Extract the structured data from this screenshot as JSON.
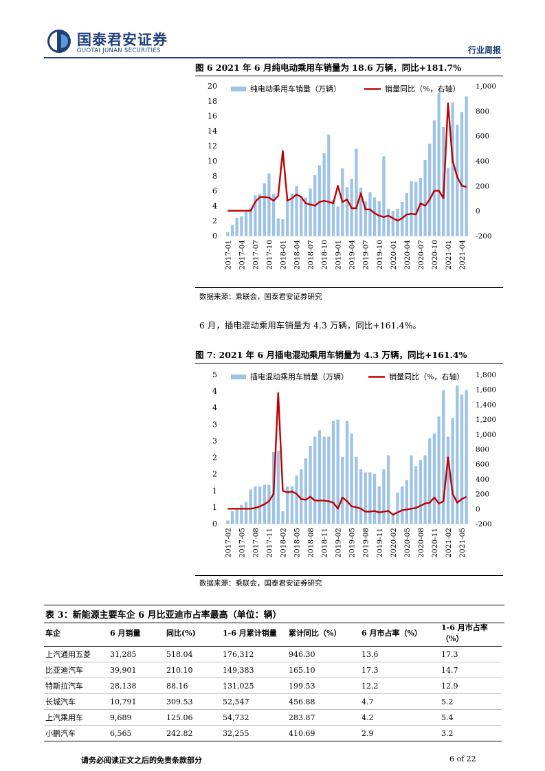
{
  "header": {
    "company_cn": "国泰君安证券",
    "company_en": "GUOTAI JUNAN SECURITIES",
    "report_type": "行业周报"
  },
  "figure6": {
    "title": "图 6 2021 年 6 月纯电动乘用车销量为 18.6 万辆，同比+181.7%",
    "legend_bar": "纯电动乘用车销量（万辆）",
    "legend_line": "销量同比（%，右轴）",
    "source": "数据来源：乘联会，国泰君安证券研究"
  },
  "paragraph": "6 月，插电混动乘用车销量为 4.3 万辆，同比+161.4%。",
  "figure7": {
    "title": "图 7: 2021 年 6 月插电混动乘用车销量为 4.3 万辆，同比+161.4%",
    "legend_bar": "插电混动乘用车销量（万辆）",
    "legend_line": "销量同比（%，右轴）",
    "source": "数据来源：乘联会，国泰君安证券研究"
  },
  "chart_data": [
    {
      "type": "bar",
      "combo": "bar+line",
      "title": "图 6 2021 年 6 月纯电动乘用车销量为 18.6 万辆，同比+181.7%",
      "x_start": "2017-01",
      "x_tick_labels": [
        "2017-01",
        "2017-04",
        "2017-07",
        "2017-10",
        "2018-01",
        "2018-04",
        "2018-07",
        "2018-10",
        "2019-01",
        "2019-04",
        "2019-07",
        "2019-10",
        "2020-01",
        "2020-04",
        "2020-07",
        "2020-10",
        "2021-01",
        "2021-04"
      ],
      "y_left_ticks": [
        0,
        2,
        4,
        6,
        8,
        10,
        12,
        14,
        16,
        18,
        20
      ],
      "y_right_ticks": [
        -200,
        0,
        200,
        400,
        600,
        800,
        1000
      ],
      "ylim_left": [
        0,
        20
      ],
      "ylim_right": [
        -200,
        1000
      ],
      "legend_position": "top",
      "colors": {
        "bar": "#9dc3e6",
        "line": "#c00000"
      },
      "series": [
        {
          "name": "纯电动乘用车销量（万辆）",
          "axis": "left",
          "kind": "bar",
          "values": [
            0.5,
            1.4,
            2.4,
            2.6,
            3.2,
            3.7,
            5.4,
            5.6,
            7.0,
            8.3,
            5.6,
            2.3,
            2.2,
            4.8,
            5.6,
            6.6,
            5.3,
            5.1,
            6.3,
            8.1,
            9.4,
            11.0,
            13.5,
            4.8,
            3.9,
            9.0,
            6.5,
            7.6,
            11.6,
            6.4,
            4.6,
            5.8,
            5.1,
            4.6,
            10.6,
            3.6,
            3.3,
            3.6,
            4.5,
            5.7,
            7.3,
            7.2,
            7.7,
            10.1,
            12.3,
            15.4,
            19.1,
            14.5,
            9.0,
            17.8,
            14.8,
            16.5,
            18.6
          ]
        },
        {
          "name": "销量同比（%，右轴）",
          "axis": "right",
          "kind": "line",
          "values": [
            0,
            0,
            0,
            0,
            0,
            0,
            70,
            110,
            110,
            105,
            80,
            120,
            480,
            80,
            100,
            130,
            110,
            60,
            50,
            40,
            70,
            80,
            70,
            60,
            200,
            70,
            90,
            20,
            20,
            140,
            10,
            10,
            -20,
            -40,
            -50,
            -40,
            -60,
            -80,
            -60,
            -30,
            -25,
            -30,
            60,
            40,
            90,
            160,
            160,
            100,
            860,
            400,
            270,
            200,
            190
          ]
        }
      ]
    },
    {
      "type": "bar",
      "combo": "bar+line",
      "title": "图 7: 2021 年 6 月插电混动乘用车销量为 4.3 万辆，同比+161.4%",
      "x_start": "2017-02",
      "x_tick_labels": [
        "2017-02",
        "2017-05",
        "2017-08",
        "2017-11",
        "2018-02",
        "2018-05",
        "2018-08",
        "2018-11",
        "2019-02",
        "2019-05",
        "2019-08",
        "2019-11",
        "2020-02",
        "2020-05",
        "2020-08",
        "2020-11",
        "2021-02",
        "2021-05"
      ],
      "y_left_tick_labels": [
        "0",
        "1",
        "1",
        "2",
        "2",
        "3",
        "3",
        "4",
        "4",
        "5"
      ],
      "y_right_ticks": [
        -200,
        0,
        200,
        400,
        600,
        800,
        1000,
        1200,
        1400,
        1600,
        1800
      ],
      "ylim_left": [
        0,
        4.8
      ],
      "ylim_right": [
        -200,
        1800
      ],
      "legend_position": "top",
      "colors": {
        "bar": "#9dc3e6",
        "line": "#c00000"
      },
      "series": [
        {
          "name": "插电混动乘用车销量（万辆）",
          "axis": "left",
          "kind": "bar",
          "values": [
            0.1,
            0.4,
            0.5,
            0.6,
            0.7,
            1.1,
            1.2,
            1.2,
            1.25,
            1.25,
            2.3,
            2.35,
            0.4,
            1.2,
            1.2,
            1.55,
            1.75,
            2.1,
            2.5,
            2.8,
            3.0,
            2.8,
            2.8,
            3.3,
            3.35,
            2.15,
            3.3,
            2.9,
            2.15,
            1.75,
            1.65,
            1.65,
            1.6,
            1.2,
            1.75,
            2.2,
            0.3,
            1.0,
            1.2,
            1.4,
            2.2,
            1.85,
            2.05,
            2.2,
            2.75,
            2.9,
            3.45,
            4.3,
            2.8,
            3.4,
            4.45,
            4.15,
            4.3
          ]
        },
        {
          "name": "销量同比（%，右轴）",
          "axis": "right",
          "kind": "line",
          "values": [
            0,
            0,
            0,
            0,
            0,
            0,
            10,
            30,
            60,
            100,
            200,
            1550,
            240,
            220,
            230,
            200,
            130,
            120,
            160,
            110,
            110,
            110,
            100,
            80,
            0,
            150,
            100,
            30,
            20,
            0,
            -40,
            -40,
            -30,
            -50,
            -40,
            -30,
            -80,
            -50,
            -20,
            -10,
            0,
            10,
            40,
            70,
            80,
            150,
            70,
            100,
            690,
            200,
            80,
            130,
            160
          ]
        }
      ]
    }
  ],
  "table": {
    "title": "表 3：新能源主要车企 6 月比亚迪市占率最高（单位：辆）",
    "headers": [
      "车企",
      "6 月销量",
      "同比(%)",
      "1-6 月累计销量",
      "累计同比（%）",
      "6 月市占率（%）",
      "1-6 月市占率（%）"
    ],
    "rows": [
      [
        "上汽通用五菱",
        "31,285",
        "518.04",
        "176,312",
        "946.30",
        "13.6",
        "17.3"
      ],
      [
        "比亚迪汽车",
        "39,901",
        "210.10",
        "149,383",
        "165.10",
        "17.3",
        "14.7"
      ],
      [
        "特斯拉汽车",
        "28,138",
        "88.16",
        "131,025",
        "199.53",
        "12.2",
        "12.9"
      ],
      [
        "长城汽车",
        "10,791",
        "309.53",
        "52,547",
        "456.88",
        "4.7",
        "5.2"
      ],
      [
        "上汽乘用车",
        "9,689",
        "125.06",
        "54,732",
        "283.87",
        "4.2",
        "5.4"
      ],
      [
        "小鹏汽车",
        "6,565",
        "242.82",
        "32,255",
        "410.69",
        "2.9",
        "3.2"
      ]
    ]
  },
  "footer": {
    "disclaimer": "请务必阅读正文之后的免责条款部分",
    "page": "6 of 22"
  }
}
